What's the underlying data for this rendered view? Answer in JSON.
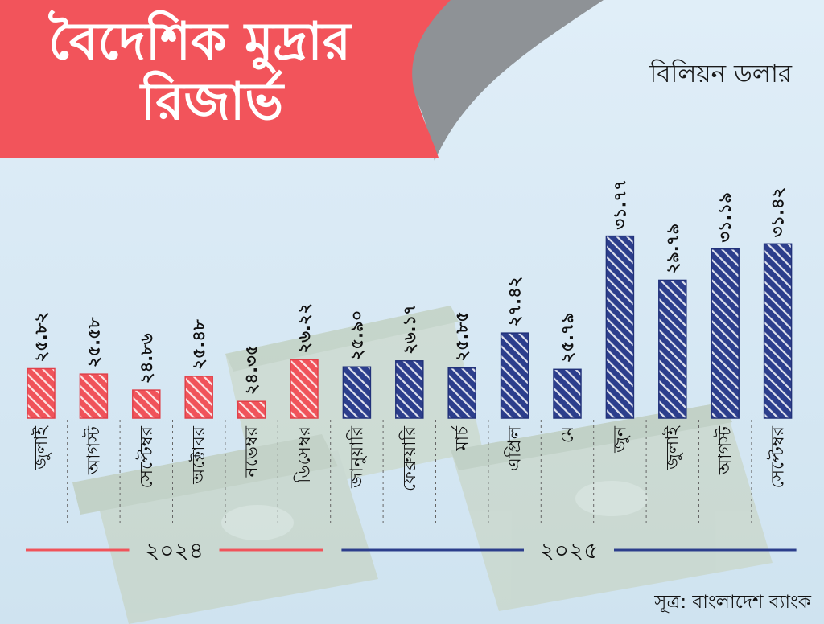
{
  "title": [
    "বৈদেশিক মুদ্রার",
    "রিজার্ভ"
  ],
  "unit": "বিলিয়ন ডলার",
  "source": "সূত্র: বাংলাদেশ ব্যাংক",
  "colors": {
    "year2024": "#f0535a",
    "year2025": "#2c3e8c",
    "banner": "#f2545b",
    "banner_shadow": "#8f9396"
  },
  "chart_data": {
    "type": "bar",
    "unit": "বিলিয়ন ডলার",
    "categories": [
      "জুলাই",
      "আগস্ট",
      "সেপ্টেম্বর",
      "অক্টোবর",
      "নভেম্বর",
      "ডিসেম্বর",
      "জানুয়ারি",
      "ফেব্রুয়ারি",
      "মার্চ",
      "এপ্রিল",
      "মে",
      "জুন",
      "জুলাই",
      "আগস্ট",
      "সেপ্টেম্বর"
    ],
    "values": [
      25.82,
      25.58,
      24.86,
      25.48,
      24.35,
      26.22,
      25.9,
      26.17,
      25.85,
      27.42,
      25.79,
      31.77,
      29.79,
      31.19,
      31.42
    ],
    "value_labels": [
      "২৫.৮২",
      "২৫.৫৮",
      "২৪.৮৬",
      "২৫.৪৮",
      "২৪.৩৫",
      "২৬.২২",
      "২৫.৯০",
      "২৬.১৭",
      "২৫.৮৫",
      "২৭.৪২",
      "২৫.৭৯",
      "৩১.৭৭",
      "২৯.৭৯",
      "৩১.১৯",
      "৩১.৪২"
    ],
    "years": [
      {
        "label": "২০২৪",
        "start": 0,
        "end": 5
      },
      {
        "label": "২০২৫",
        "start": 6,
        "end": 14
      }
    ],
    "ylim": [
      23.6,
      31.9
    ],
    "grid": false,
    "legend": "none"
  }
}
